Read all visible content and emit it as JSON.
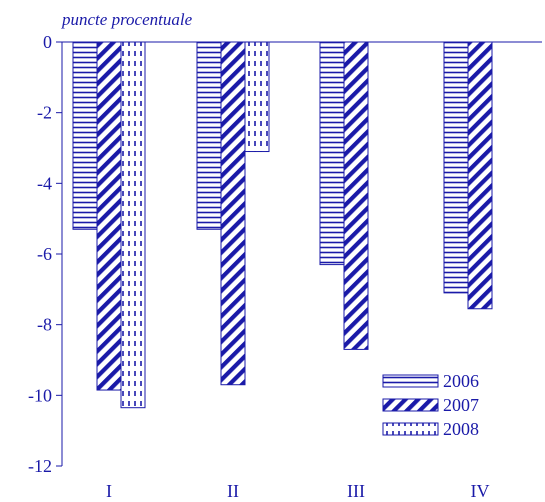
{
  "chart_data": {
    "type": "bar",
    "ylabel": "puncte procentuale",
    "categories": [
      "I",
      "II",
      "III",
      "IV"
    ],
    "y_ticks": [
      "0",
      "-2",
      "-4",
      "-6",
      "-8",
      "-10",
      "-12"
    ],
    "ylim": [
      -12,
      0
    ],
    "legend_position": "bottom-right",
    "grid": false,
    "series": [
      {
        "name": "2006",
        "pattern": "horizontal-lines",
        "values": [
          -5.3,
          -5.3,
          -6.3,
          -7.1
        ]
      },
      {
        "name": "2007",
        "pattern": "diagonal-stripes",
        "values": [
          -9.85,
          -9.7,
          -8.7,
          -7.55
        ]
      },
      {
        "name": "2008",
        "pattern": "dashed-vertical-lines",
        "values": [
          -10.35,
          -3.1,
          null,
          null
        ]
      }
    ],
    "colors": {
      "ink": "#1a1aa8",
      "background": "#ffffff"
    }
  }
}
